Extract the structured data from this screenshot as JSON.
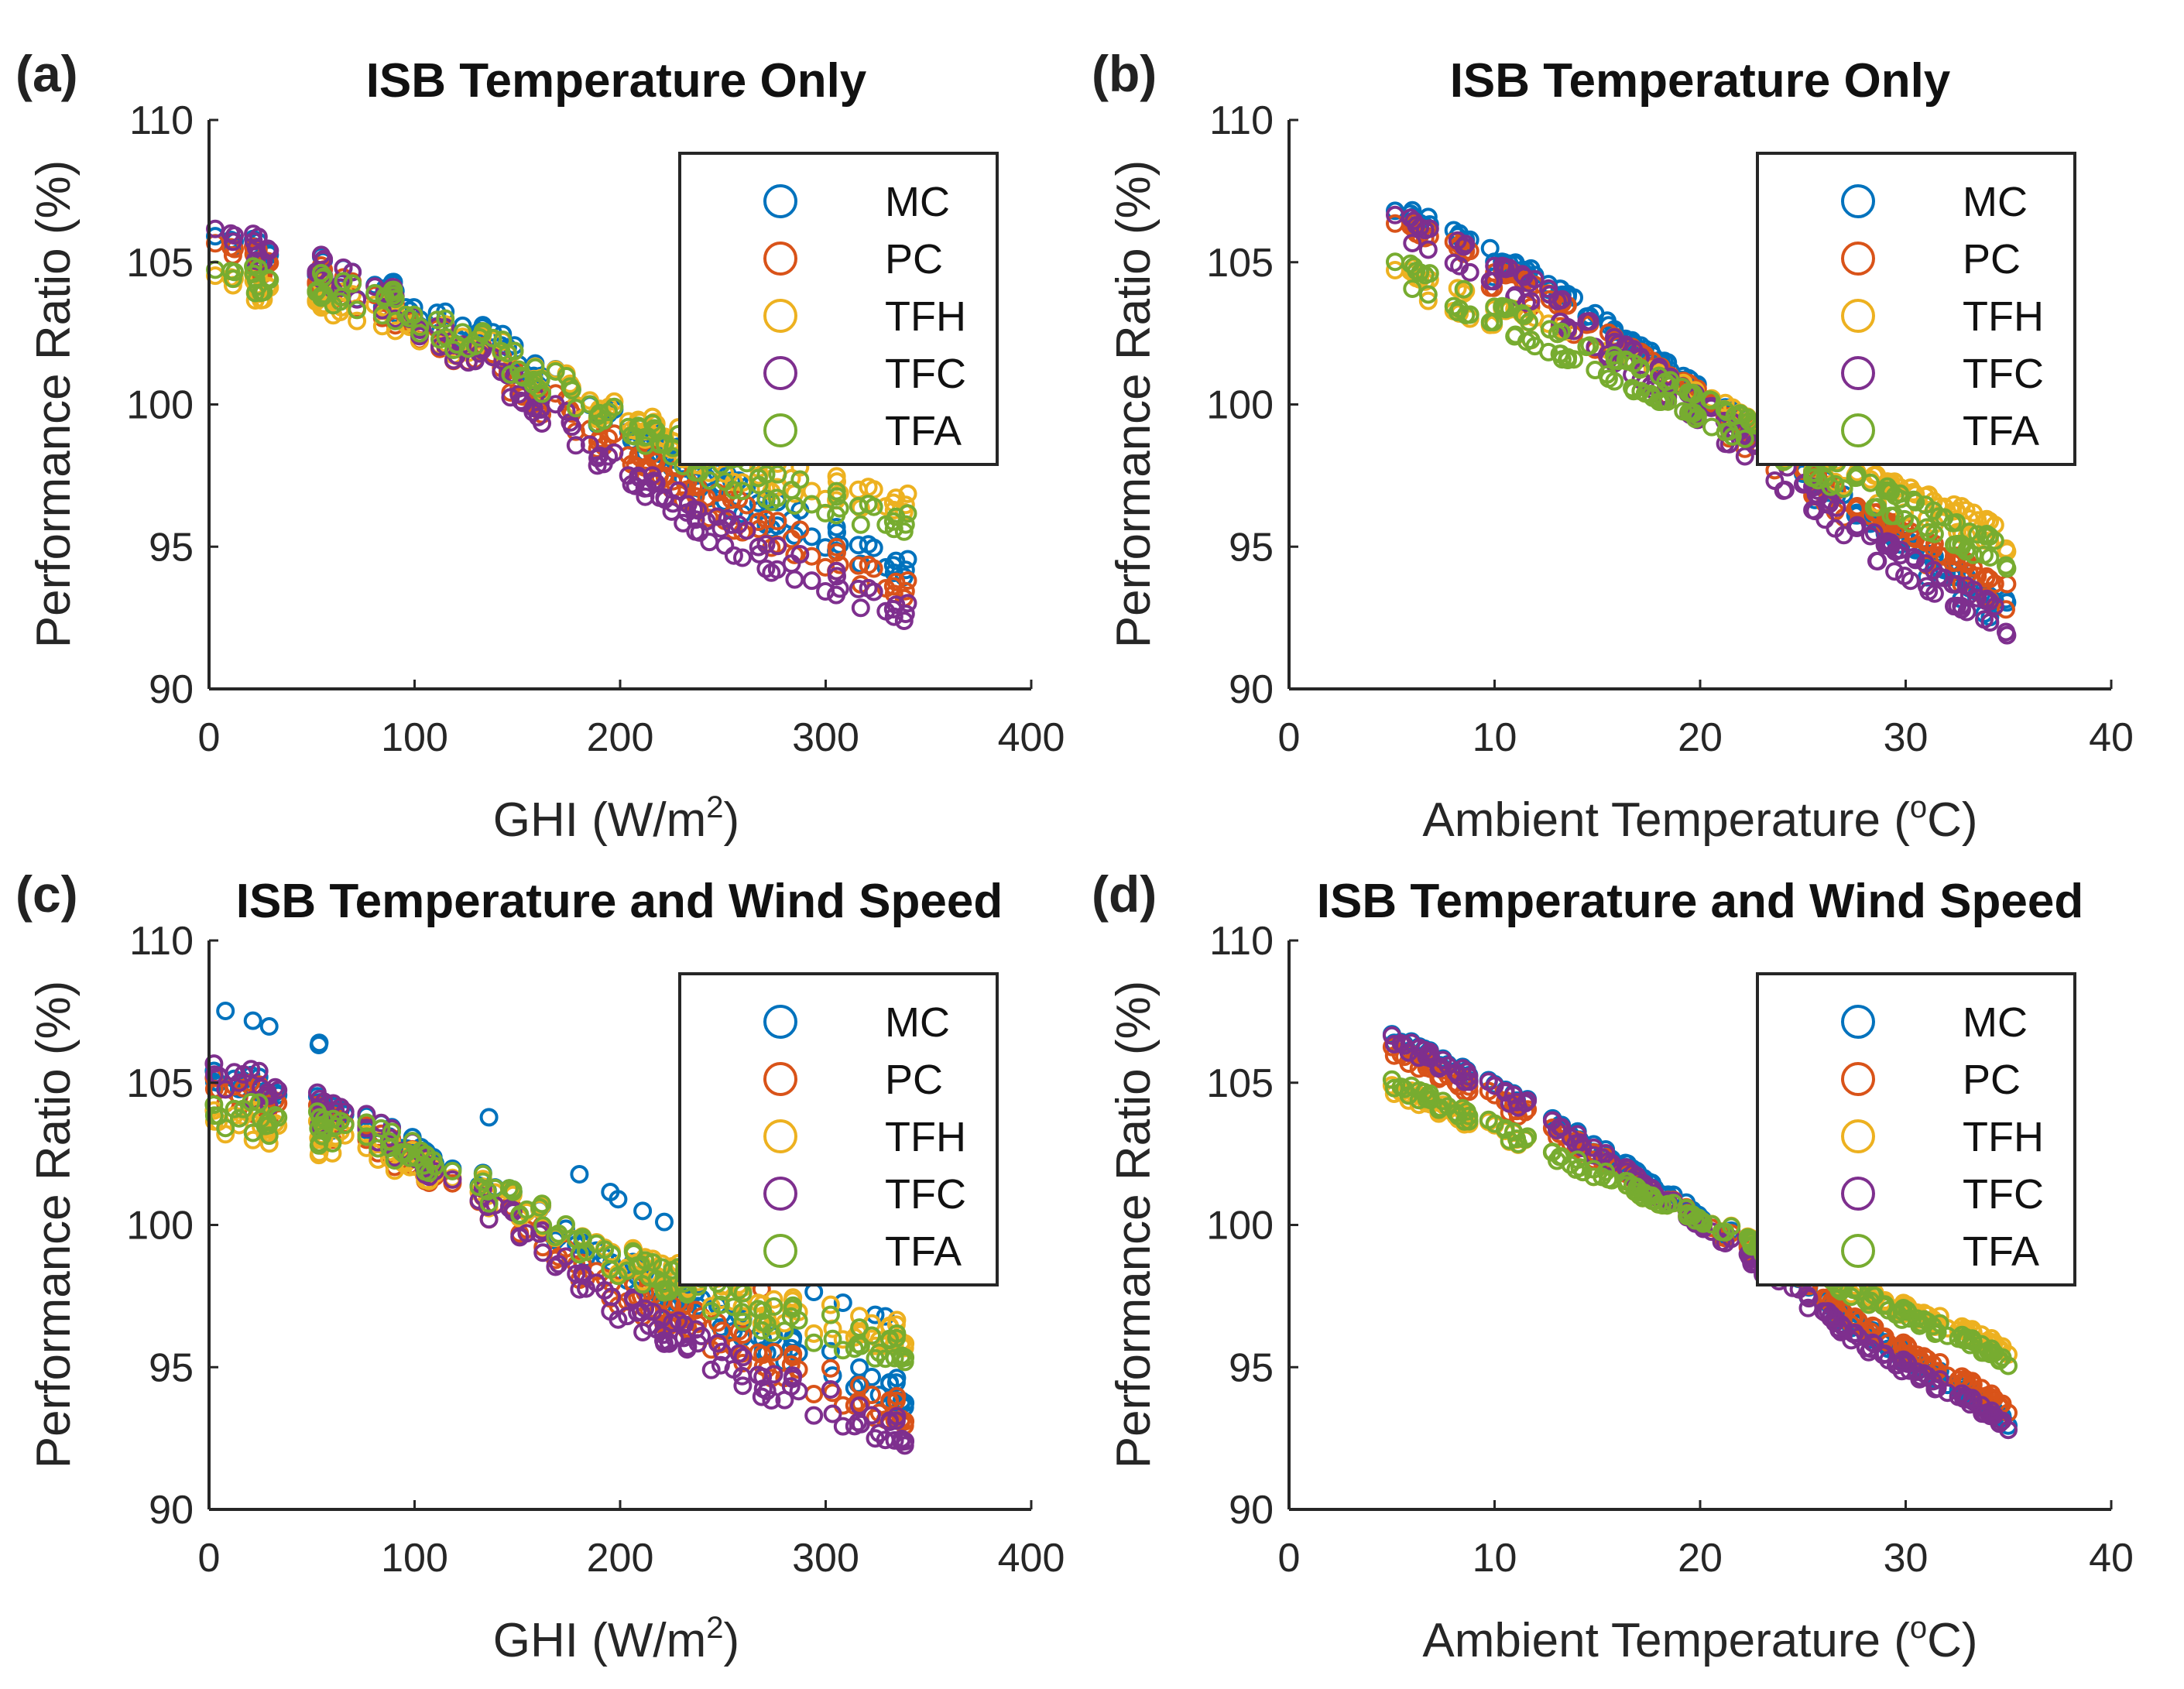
{
  "figure": {
    "legend_entries": [
      "MC",
      "PC",
      "TFH",
      "TFC",
      "TFA"
    ],
    "series_colors": {
      "MC": "#0072BD",
      "PC": "#D95319",
      "TFH": "#EDB120",
      "TFC": "#7E2F8E",
      "TFA": "#77AC30"
    }
  },
  "chart_data": [
    {
      "panel": "(a)",
      "type": "scatter",
      "title": "ISB Temperature Only",
      "xlabel_main": "GHI (W/m",
      "xlabel_sup": "2",
      "xlabel_end": ")",
      "ylabel": "Performance Ratio (%)",
      "xlim": [
        0,
        400
      ],
      "ylim": [
        90,
        110
      ],
      "xticks": [
        0,
        100,
        200,
        300,
        400
      ],
      "yticks": [
        90,
        95,
        100,
        105,
        110
      ],
      "legend_position": "top-right",
      "marker": "open-circle",
      "x_range_of_points": [
        2,
        340
      ],
      "series": [
        {
          "name": "MC",
          "trend": [
            [
              2,
              106.2
            ],
            [
              80,
              104.5
            ],
            [
              150,
              102.0
            ],
            [
              200,
              99.5
            ],
            [
              260,
              97.0
            ],
            [
              340,
              94.5
            ]
          ]
        },
        {
          "name": "PC",
          "trend": [
            [
              2,
              105.8
            ],
            [
              80,
              104.0
            ],
            [
              150,
              101.0
            ],
            [
              200,
              98.5
            ],
            [
              260,
              96.2
            ],
            [
              340,
              93.6
            ]
          ]
        },
        {
          "name": "TFH",
          "trend": [
            [
              2,
              104.5
            ],
            [
              80,
              103.5
            ],
            [
              150,
              101.5
            ],
            [
              200,
              99.5
            ],
            [
              260,
              97.8
            ],
            [
              340,
              96.5
            ]
          ]
        },
        {
          "name": "TFC",
          "trend": [
            [
              2,
              106.0
            ],
            [
              80,
              104.0
            ],
            [
              150,
              100.5
            ],
            [
              200,
              97.5
            ],
            [
              260,
              95.0
            ],
            [
              340,
              92.5
            ]
          ]
        },
        {
          "name": "TFA",
          "trend": [
            [
              2,
              104.4
            ],
            [
              80,
              103.6
            ],
            [
              150,
              101.2
            ],
            [
              200,
              99.0
            ],
            [
              260,
              97.2
            ],
            [
              340,
              95.5
            ]
          ]
        }
      ]
    },
    {
      "panel": "(b)",
      "type": "scatter",
      "title": "ISB Temperature Only",
      "xlabel_main": "Ambient Temperature (",
      "xlabel_sup": "o",
      "xlabel_end": "C)",
      "ylabel": "Performance Ratio (%)",
      "xlim": [
        0,
        40
      ],
      "ylim": [
        90,
        110
      ],
      "xticks": [
        0,
        10,
        20,
        30,
        40
      ],
      "yticks": [
        90,
        95,
        100,
        105,
        110
      ],
      "legend_position": "top-right",
      "marker": "open-circle",
      "x_range_of_points": [
        5,
        35
      ],
      "series": [
        {
          "name": "MC",
          "trend": [
            [
              5,
              106.8
            ],
            [
              12,
              104.2
            ],
            [
              20,
              100.2
            ],
            [
              28,
              95.8
            ],
            [
              35,
              92.6
            ]
          ]
        },
        {
          "name": "PC",
          "trend": [
            [
              5,
              106.3
            ],
            [
              12,
              103.8
            ],
            [
              20,
              100.0
            ],
            [
              28,
              96.0
            ],
            [
              35,
              93.2
            ]
          ]
        },
        {
          "name": "TFH",
          "trend": [
            [
              5,
              104.6
            ],
            [
              12,
              102.6
            ],
            [
              20,
              100.0
            ],
            [
              28,
              97.2
            ],
            [
              35,
              95.3
            ]
          ]
        },
        {
          "name": "TFC",
          "trend": [
            [
              5,
              106.5
            ],
            [
              12,
              103.9
            ],
            [
              20,
              99.8
            ],
            [
              28,
              95.2
            ],
            [
              35,
              92.3
            ]
          ]
        },
        {
          "name": "TFA",
          "trend": [
            [
              5,
              104.8
            ],
            [
              12,
              102.5
            ],
            [
              20,
              99.9
            ],
            [
              28,
              97.0
            ],
            [
              35,
              94.6
            ]
          ]
        }
      ]
    },
    {
      "panel": "(c)",
      "type": "scatter",
      "title": "ISB Temperature and Wind Speed",
      "xlabel_main": "GHI (W/m",
      "xlabel_sup": "2",
      "xlabel_end": ")",
      "ylabel": "Performance Ratio (%)",
      "xlim": [
        0,
        400
      ],
      "ylim": [
        90,
        110
      ],
      "xticks": [
        0,
        100,
        200,
        300,
        400
      ],
      "yticks": [
        90,
        95,
        100,
        105,
        110
      ],
      "legend_position": "top-right",
      "marker": "open-circle",
      "x_range_of_points": [
        2,
        340
      ],
      "series": [
        {
          "name": "MC",
          "trend": [
            [
              2,
              106.2
            ],
            [
              80,
              104.3
            ],
            [
              150,
              101.8
            ],
            [
              200,
              99.5
            ],
            [
              260,
              97.2
            ],
            [
              340,
              95.0
            ]
          ]
        },
        {
          "name": "PC",
          "trend": [
            [
              2,
              105.8
            ],
            [
              80,
              103.8
            ],
            [
              150,
              101.0
            ],
            [
              200,
              98.6
            ],
            [
              260,
              96.5
            ],
            [
              340,
              94.2
            ]
          ]
        },
        {
          "name": "TFH",
          "trend": [
            [
              2,
              104.5
            ],
            [
              80,
              103.4
            ],
            [
              150,
              101.4
            ],
            [
              200,
              99.6
            ],
            [
              260,
              98.0
            ],
            [
              340,
              96.8
            ]
          ]
        },
        {
          "name": "TFC",
          "trend": [
            [
              2,
              106.0
            ],
            [
              80,
              103.9
            ],
            [
              150,
              100.6
            ],
            [
              200,
              97.8
            ],
            [
              260,
              95.4
            ],
            [
              340,
              93.2
            ]
          ]
        },
        {
          "name": "TFA",
          "trend": [
            [
              2,
              104.4
            ],
            [
              80,
              103.5
            ],
            [
              150,
              101.2
            ],
            [
              200,
              99.2
            ],
            [
              260,
              97.5
            ],
            [
              340,
              96.0
            ]
          ]
        }
      ]
    },
    {
      "panel": "(d)",
      "type": "scatter",
      "title": "ISB Temperature and Wind Speed",
      "xlabel_main": "Ambient Temperature (",
      "xlabel_sup": "o",
      "xlabel_end": "C)",
      "ylabel": "Performance Ratio (%)",
      "xlim": [
        0,
        40
      ],
      "ylim": [
        90,
        110
      ],
      "xticks": [
        0,
        10,
        20,
        30,
        40
      ],
      "yticks": [
        90,
        95,
        100,
        105,
        110
      ],
      "legend_position": "top-right",
      "marker": "open-circle",
      "x_range_of_points": [
        5,
        35
      ],
      "series": [
        {
          "name": "MC",
          "trend": [
            [
              5,
              106.5
            ],
            [
              12,
              104.0
            ],
            [
              20,
              100.3
            ],
            [
              28,
              96.2
            ],
            [
              35,
              93.1
            ]
          ]
        },
        {
          "name": "PC",
          "trend": [
            [
              5,
              106.0
            ],
            [
              12,
              103.6
            ],
            [
              20,
              100.1
            ],
            [
              28,
              96.3
            ],
            [
              35,
              93.5
            ]
          ]
        },
        {
          "name": "TFH",
          "trend": [
            [
              5,
              104.6
            ],
            [
              12,
              102.6
            ],
            [
              20,
              100.1
            ],
            [
              28,
              97.4
            ],
            [
              35,
              95.5
            ]
          ]
        },
        {
          "name": "TFC",
          "trend": [
            [
              5,
              106.3
            ],
            [
              12,
              103.8
            ],
            [
              20,
              99.9
            ],
            [
              28,
              95.6
            ],
            [
              35,
              92.8
            ]
          ]
        },
        {
          "name": "TFA",
          "trend": [
            [
              5,
              104.7
            ],
            [
              12,
              102.5
            ],
            [
              20,
              100.0
            ],
            [
              28,
              97.2
            ],
            [
              35,
              95.0
            ]
          ]
        }
      ]
    }
  ]
}
